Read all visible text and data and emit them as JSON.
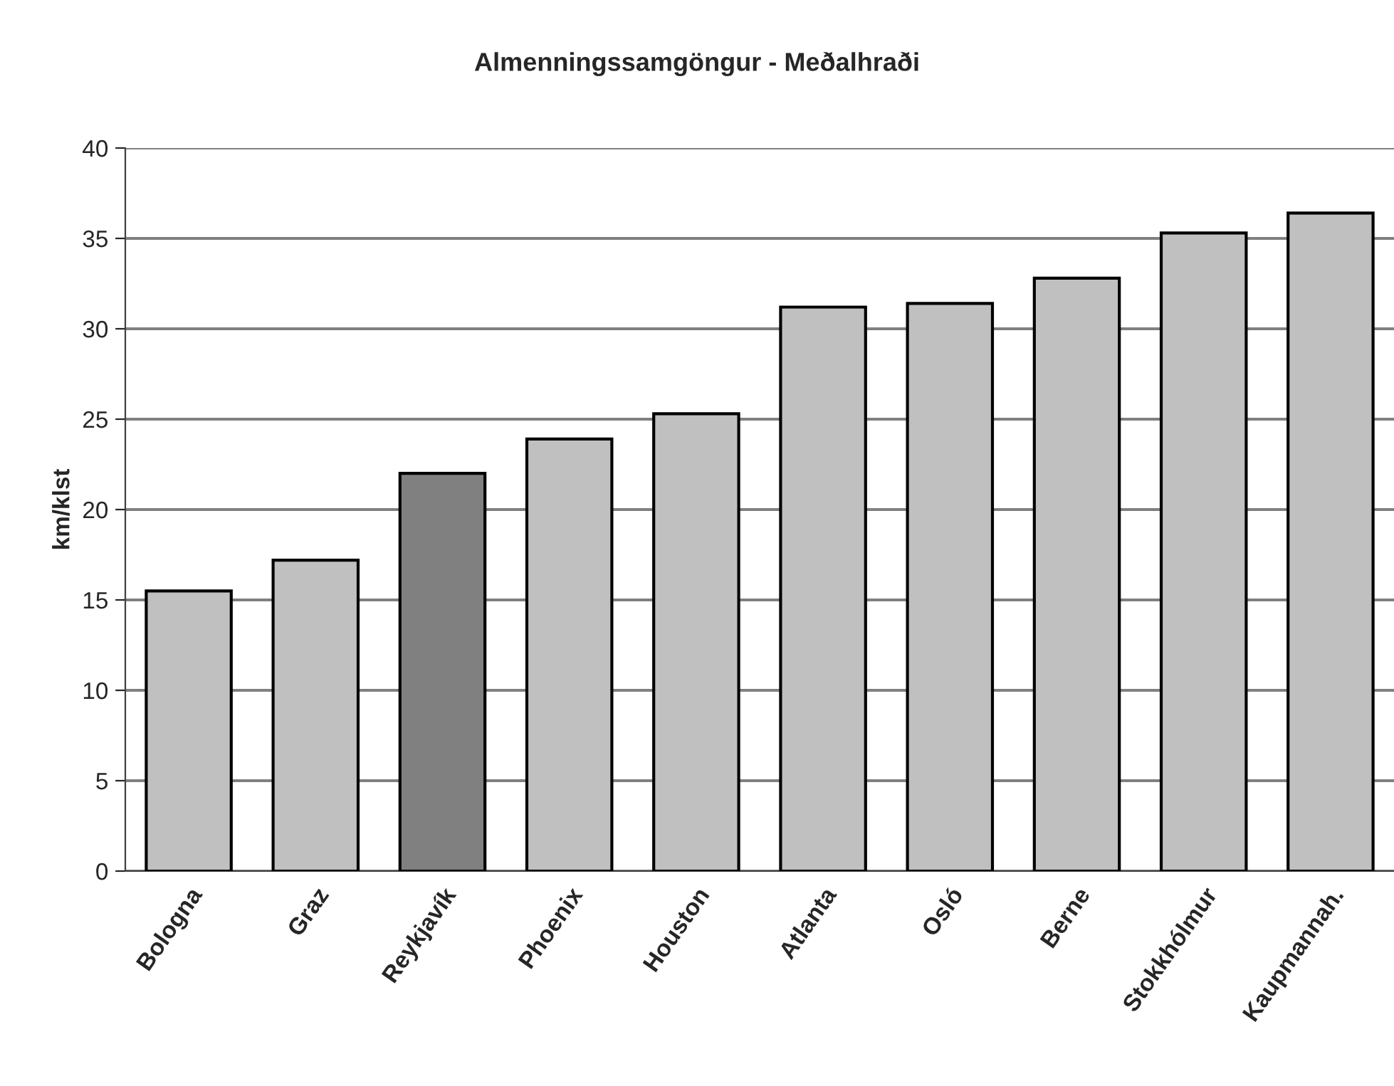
{
  "chart_data": {
    "type": "bar",
    "title": "Almenningssamgöngur - Meðalhraði",
    "ylabel": "km/klst",
    "categories": [
      "Bologna",
      "Graz",
      "Reykjavík",
      "Phoenix",
      "Houston",
      "Atlanta",
      "Osló",
      "Berne",
      "Stokkhólmur",
      "Kaupmannah."
    ],
    "values": [
      15.5,
      17.2,
      22.0,
      23.9,
      25.3,
      31.2,
      31.4,
      32.8,
      35.3,
      36.4
    ],
    "colors": [
      "#c0c0c0",
      "#c0c0c0",
      "#808080",
      "#c0c0c0",
      "#c0c0c0",
      "#c0c0c0",
      "#c0c0c0",
      "#c0c0c0",
      "#c0c0c0",
      "#c0c0c0"
    ],
    "ylim": [
      0,
      40
    ],
    "yticks": [
      0,
      5,
      10,
      15,
      20,
      25,
      30,
      35,
      40
    ],
    "grid": "y",
    "legend": false
  }
}
